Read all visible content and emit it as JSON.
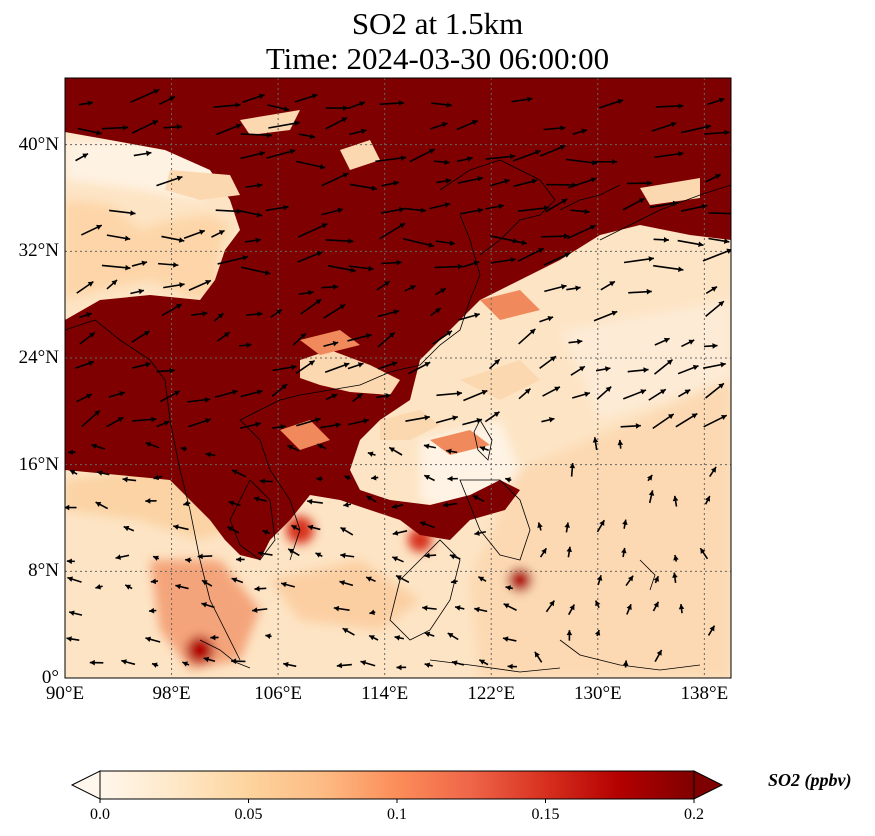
{
  "figure": {
    "title_line1": "SO2 at 1.5km",
    "title_line2": "Time: 2024-03-30 06:00:00"
  },
  "map": {
    "projection": "PlateCarree",
    "lon_range_deg": [
      90,
      140
    ],
    "lat_range_deg": [
      0,
      45
    ],
    "x_tick_labels": [
      "90°E",
      "98°E",
      "106°E",
      "114°E",
      "122°E",
      "130°E",
      "138°E"
    ],
    "y_tick_labels": [
      "0°",
      "8°N",
      "16°N",
      "24°N",
      "32°N",
      "40°N"
    ],
    "gridlines": "dotted gray",
    "field": "SO2 concentration with wind vectors",
    "high_concentration_color": "#7f0000",
    "low_concentration_color": "#fff7ec"
  },
  "colorbar": {
    "label": "SO2 (ppbv)",
    "tick_labels": [
      "0.0",
      "0.05",
      "0.1",
      "0.15",
      "0.2"
    ],
    "range": [
      0.0,
      0.2
    ],
    "extend": "both",
    "colormap": "OrRd",
    "colors": [
      "#fff7ec",
      "#fee8c8",
      "#fdd49e",
      "#fdbb84",
      "#fc8d59",
      "#ef6548",
      "#d7301f",
      "#b30000",
      "#7f0000"
    ]
  }
}
